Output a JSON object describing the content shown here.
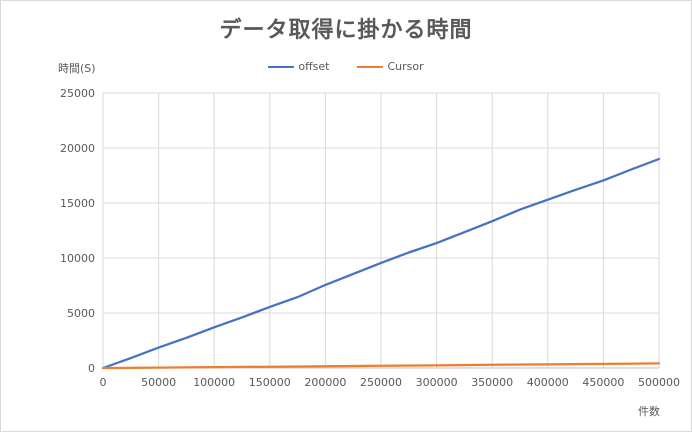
{
  "chart_data": {
    "type": "line",
    "title": "データ取得に掛かる時間",
    "xlabel": "件数",
    "ylabel": "時間(S)",
    "xlim": [
      0,
      500000
    ],
    "ylim": [
      0,
      25000
    ],
    "x_ticks": [
      0,
      50000,
      100000,
      150000,
      200000,
      250000,
      300000,
      350000,
      400000,
      450000,
      500000
    ],
    "y_ticks": [
      0,
      5000,
      10000,
      15000,
      20000,
      25000
    ],
    "grid": "vertical and horizontal",
    "legend_position": "top",
    "series": [
      {
        "name": "offset",
        "color": "#4472c4",
        "x": [
          0,
          25000,
          50000,
          75000,
          100000,
          125000,
          150000,
          175000,
          200000,
          225000,
          250000,
          275000,
          300000,
          325000,
          350000,
          375000,
          400000,
          425000,
          450000,
          475000,
          500000
        ],
        "values": [
          0,
          900,
          1850,
          2750,
          3700,
          4600,
          5550,
          6450,
          7550,
          8550,
          9550,
          10500,
          11350,
          12350,
          13350,
          14400,
          15300,
          16200,
          17050,
          18050,
          19000
        ]
      },
      {
        "name": "Cursor",
        "color": "#ed7d31",
        "x": [
          0,
          50000,
          100000,
          150000,
          200000,
          250000,
          300000,
          350000,
          400000,
          450000,
          500000
        ],
        "values": [
          0,
          40,
          80,
          120,
          160,
          200,
          240,
          290,
          330,
          370,
          420
        ]
      }
    ]
  }
}
